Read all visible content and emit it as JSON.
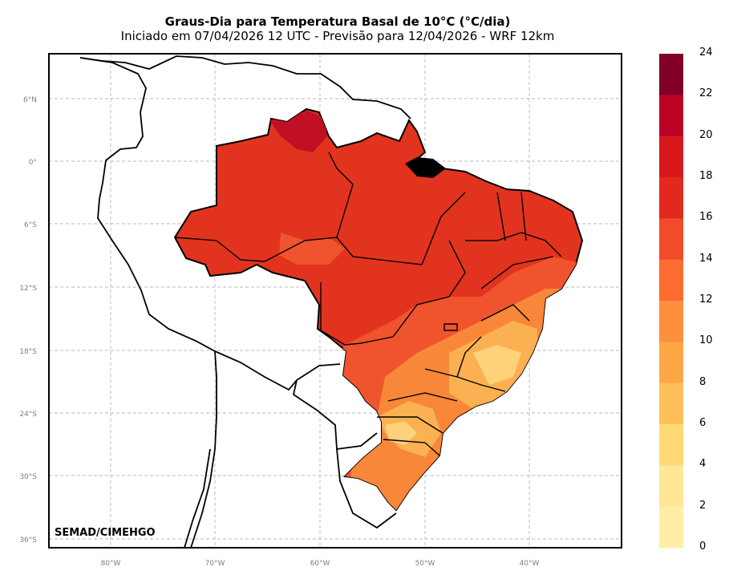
{
  "title": "Graus-Dia para Temperatura Basal de 10°C (°C/dia)",
  "subtitle": "Iniciado em 07/04/2026 12 UTC - Previsão para 12/04/2026 - WRF 12km",
  "credit": "SEMAD/CIMEHGO",
  "lat_ticks": [
    "6°N",
    "0°",
    "6°S",
    "12°S",
    "18°S",
    "24°S",
    "30°S",
    "36°S"
  ],
  "lon_ticks": [
    "80°W",
    "70°W",
    "60°W",
    "50°W",
    "40°W"
  ],
  "colorbar": {
    "labels": [
      "24",
      "22",
      "20",
      "18",
      "16",
      "14",
      "12",
      "10",
      "8",
      "6",
      "4",
      "2",
      "0"
    ],
    "colors": [
      "#800026",
      "#bd0026",
      "#d7191c",
      "#e3281f",
      "#f14b2a",
      "#fc6b30",
      "#fd8f3d",
      "#fea745",
      "#fec05a",
      "#fed976",
      "#ffe795",
      "#ffefa6",
      "#fff8c4"
    ]
  },
  "map_colors": {
    "hot": "#e2331e",
    "warm": "#f0542e",
    "mid": "#f8873a",
    "cool": "#fbb151",
    "cold": "#fdd27a",
    "peak": "#b50a26"
  }
}
